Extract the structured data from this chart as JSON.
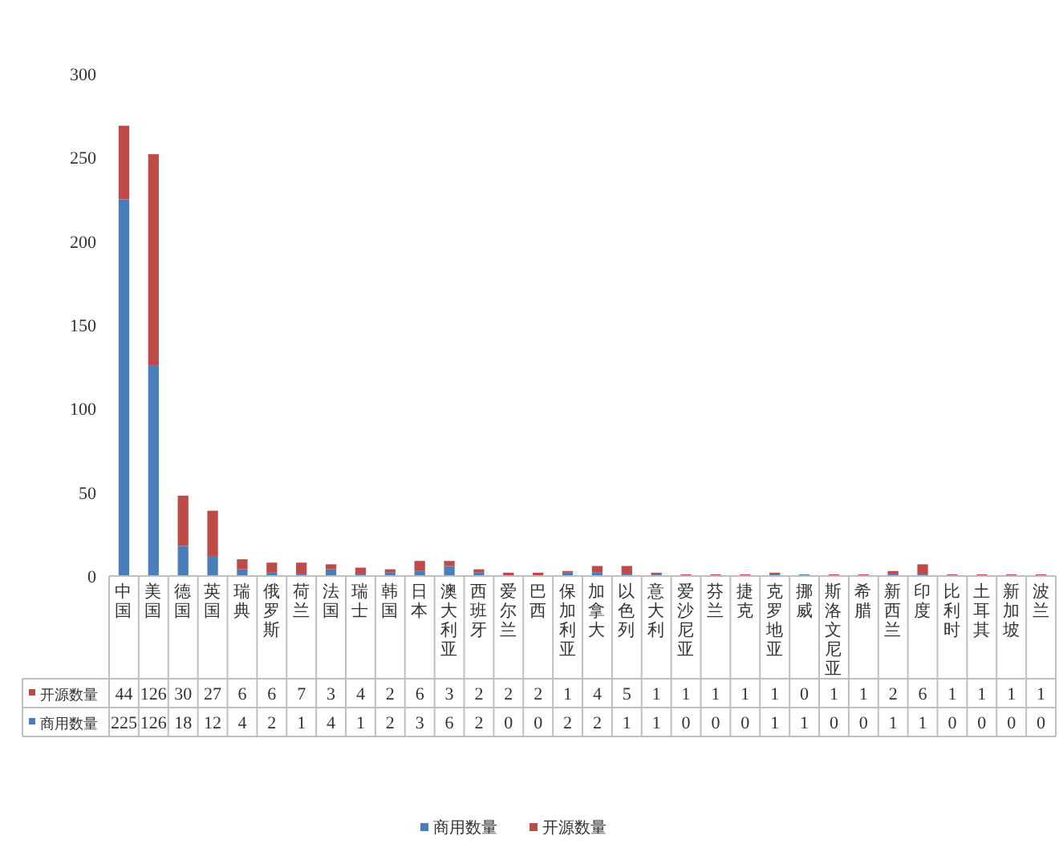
{
  "chart_data": {
    "type": "bar",
    "stacked": true,
    "categories": [
      "中国",
      "美国",
      "德国",
      "英国",
      "瑞典",
      "俄罗斯",
      "荷兰",
      "法国",
      "瑞士",
      "韩国",
      "日本",
      "澳大利亚",
      "西班牙",
      "爱尔兰",
      "巴西",
      "保加利亚",
      "加拿大",
      "以色列",
      "意大利",
      "爱沙尼亚",
      "芬兰",
      "捷克",
      "克罗地亚",
      "挪威",
      "斯洛文尼亚",
      "希腊",
      "新西兰",
      "印度",
      "比利时",
      "土耳其",
      "新加坡",
      "波兰"
    ],
    "series": [
      {
        "name": "商用数量",
        "color": "#4a7ebb",
        "values": [
          225,
          126,
          18,
          12,
          4,
          2,
          1,
          4,
          1,
          2,
          3,
          6,
          2,
          0,
          0,
          2,
          2,
          1,
          1,
          0,
          0,
          0,
          1,
          1,
          0,
          0,
          1,
          1,
          0,
          0,
          0,
          0
        ]
      },
      {
        "name": "开源数量",
        "color": "#be4b48",
        "values": [
          44,
          126,
          30,
          27,
          6,
          6,
          7,
          3,
          4,
          2,
          6,
          3,
          2,
          2,
          2,
          1,
          4,
          5,
          1,
          1,
          1,
          1,
          1,
          0,
          1,
          1,
          2,
          6,
          1,
          1,
          1,
          1
        ]
      }
    ],
    "ylim": [
      0,
      300
    ],
    "yticks": [
      0,
      50,
      100,
      150,
      200,
      250,
      300
    ],
    "data_labels": true,
    "legend": "bottom",
    "grid": false
  }
}
